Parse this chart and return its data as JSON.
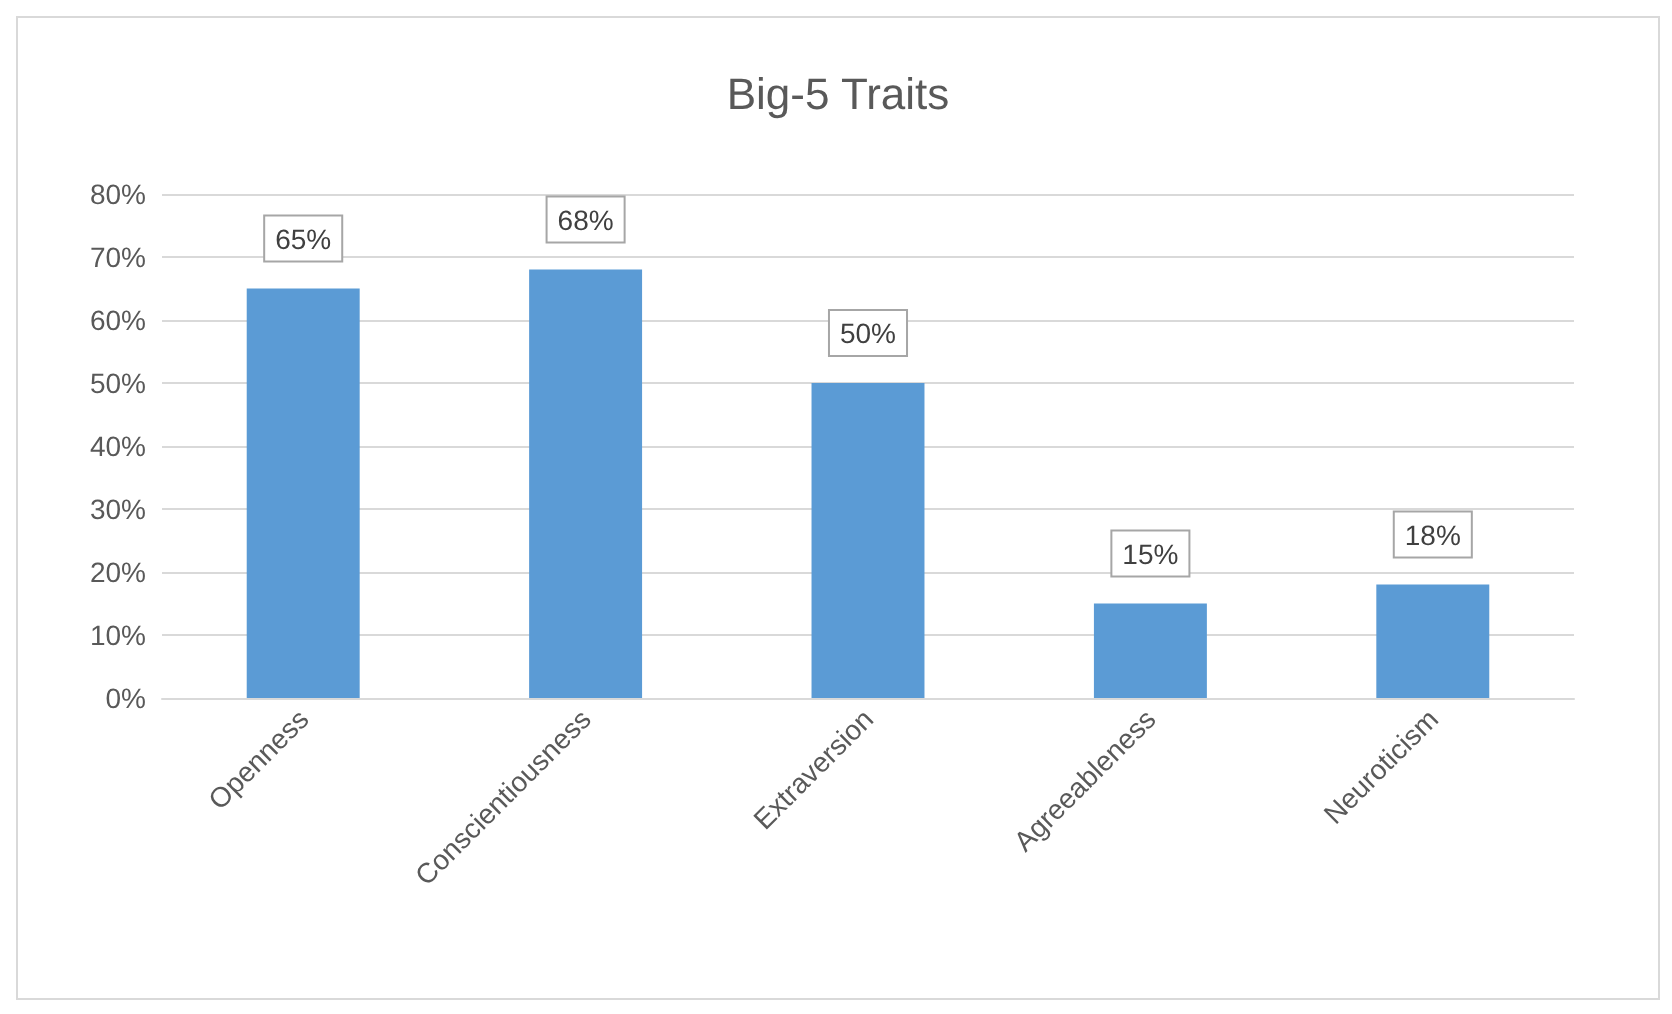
{
  "chart_data": {
    "type": "bar",
    "title": "Big-5 Traits",
    "categories": [
      "Openness",
      "Conscientiousness",
      "Extraversion",
      "Agreeableness",
      "Neuroticism"
    ],
    "values": [
      65,
      68,
      50,
      15,
      18
    ],
    "value_labels": [
      "65%",
      "68%",
      "50%",
      "15%",
      "18%"
    ],
    "color": "#5b9bd5",
    "ylim": [
      0,
      80
    ],
    "yticks": [
      {
        "value": 0,
        "label": "0%"
      },
      {
        "value": 10,
        "label": "10%"
      },
      {
        "value": 20,
        "label": "20%"
      },
      {
        "value": 30,
        "label": "30%"
      },
      {
        "value": 40,
        "label": "40%"
      },
      {
        "value": 50,
        "label": "50%"
      },
      {
        "value": 60,
        "label": "60%"
      },
      {
        "value": 70,
        "label": "70%"
      },
      {
        "value": 80,
        "label": "80%"
      }
    ],
    "grid": "y"
  }
}
